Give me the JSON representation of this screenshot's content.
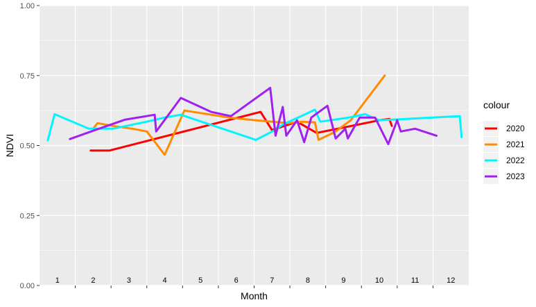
{
  "chart_data": {
    "type": "line",
    "xlabel": "Month",
    "ylabel": "NDVI",
    "ylim": [
      0,
      1
    ],
    "y_ticks": [
      "0.00",
      "0.25",
      "0.50",
      "0.75",
      "1.00"
    ],
    "y_tick_values": [
      0,
      0.25,
      0.5,
      0.75,
      1.0
    ],
    "xlim": [
      0.5,
      12.5
    ],
    "x_tick_values": [
      1.5,
      2.5,
      3.5,
      4.5,
      5.5,
      6.5,
      7.5,
      8.5,
      9.5,
      10.5,
      11.5
    ],
    "month_labels": [
      "1",
      "2",
      "3",
      "4",
      "5",
      "6",
      "7",
      "8",
      "9",
      "10",
      "11",
      "12"
    ],
    "month_positions": [
      1,
      2,
      3,
      4,
      5,
      6,
      7,
      8,
      9,
      10,
      11,
      12
    ],
    "grid": true,
    "legend_title": "colour",
    "legend_position": "right",
    "series": [
      {
        "name": "2020",
        "color": "#ff0000",
        "points": [
          [
            1.93,
            0.482
          ],
          [
            2.45,
            0.482
          ],
          [
            6.68,
            0.62
          ],
          [
            7.0,
            0.555
          ],
          [
            7.7,
            0.585
          ],
          [
            8.25,
            0.545
          ],
          [
            10.0,
            0.59
          ],
          [
            10.28,
            0.595
          ],
          [
            10.35,
            0.57
          ]
        ]
      },
      {
        "name": "2021",
        "color": "#ff8c00",
        "points": [
          [
            2.0,
            0.56
          ],
          [
            2.12,
            0.58
          ],
          [
            2.55,
            0.57
          ],
          [
            3.1,
            0.56
          ],
          [
            3.5,
            0.55
          ],
          [
            4.0,
            0.467
          ],
          [
            4.55,
            0.625
          ],
          [
            5.3,
            0.61
          ],
          [
            5.8,
            0.6
          ],
          [
            6.55,
            0.59
          ],
          [
            7.45,
            0.58
          ],
          [
            7.85,
            0.585
          ],
          [
            8.2,
            0.583
          ],
          [
            8.3,
            0.52
          ],
          [
            8.75,
            0.548
          ],
          [
            9.2,
            0.59
          ],
          [
            10.15,
            0.75
          ]
        ]
      },
      {
        "name": "2022",
        "color": "#00f5ff",
        "points": [
          [
            0.73,
            0.518
          ],
          [
            0.92,
            0.612
          ],
          [
            1.88,
            0.56
          ],
          [
            2.55,
            0.56
          ],
          [
            3.5,
            0.585
          ],
          [
            4.0,
            0.6
          ],
          [
            4.45,
            0.61
          ],
          [
            5.15,
            0.58
          ],
          [
            6.55,
            0.52
          ],
          [
            7.08,
            0.555
          ],
          [
            7.3,
            0.575
          ],
          [
            7.9,
            0.61
          ],
          [
            8.2,
            0.628
          ],
          [
            8.35,
            0.585
          ],
          [
            9.15,
            0.6
          ],
          [
            9.6,
            0.612
          ],
          [
            10.0,
            0.59
          ],
          [
            12.25,
            0.605
          ],
          [
            12.3,
            0.53
          ]
        ]
      },
      {
        "name": "2023",
        "color": "#a020f0",
        "points": [
          [
            1.35,
            0.523
          ],
          [
            2.05,
            0.555
          ],
          [
            2.88,
            0.592
          ],
          [
            3.72,
            0.61
          ],
          [
            3.76,
            0.55
          ],
          [
            4.45,
            0.67
          ],
          [
            5.3,
            0.62
          ],
          [
            5.85,
            0.605
          ],
          [
            6.95,
            0.706
          ],
          [
            7.1,
            0.535
          ],
          [
            7.3,
            0.638
          ],
          [
            7.4,
            0.535
          ],
          [
            7.7,
            0.59
          ],
          [
            7.9,
            0.512
          ],
          [
            8.1,
            0.6
          ],
          [
            8.55,
            0.642
          ],
          [
            8.78,
            0.525
          ],
          [
            9.05,
            0.56
          ],
          [
            9.12,
            0.525
          ],
          [
            9.45,
            0.6
          ],
          [
            9.88,
            0.6
          ],
          [
            10.25,
            0.505
          ],
          [
            10.5,
            0.59
          ],
          [
            10.6,
            0.55
          ],
          [
            11.0,
            0.56
          ],
          [
            11.6,
            0.535
          ]
        ]
      }
    ]
  }
}
